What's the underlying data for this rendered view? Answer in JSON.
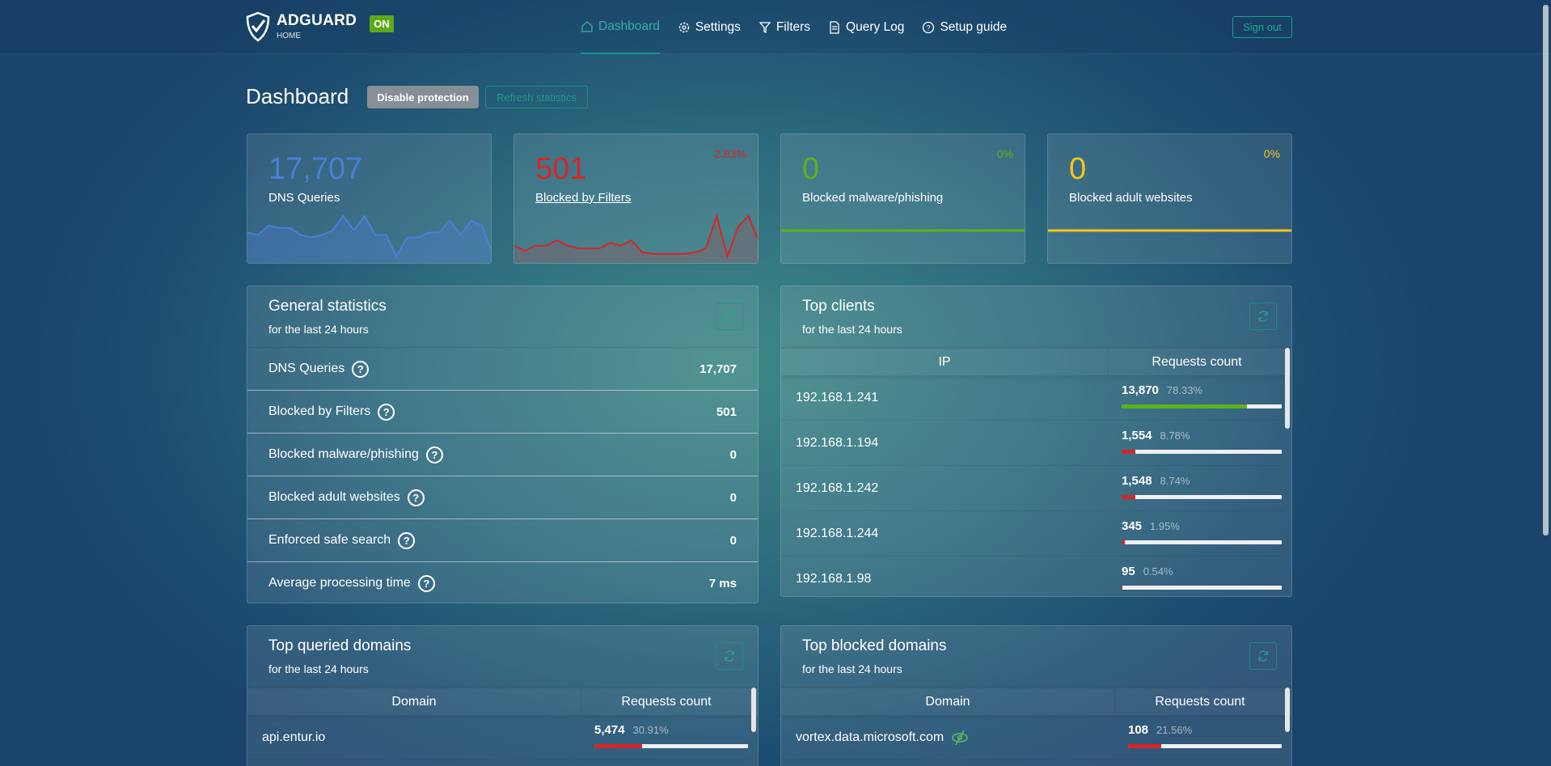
{
  "header": {
    "brand": "ADGUARD",
    "brand_sub": "HOME",
    "status_badge": "ON",
    "nav": [
      {
        "label": "Dashboard",
        "icon": "home-icon",
        "active": true
      },
      {
        "label": "Settings",
        "icon": "gear-icon"
      },
      {
        "label": "Filters",
        "icon": "filter-icon"
      },
      {
        "label": "Query Log",
        "icon": "document-icon"
      },
      {
        "label": "Setup guide",
        "icon": "help-icon"
      }
    ],
    "sign_out": "Sign out"
  },
  "page": {
    "title": "Dashboard",
    "disable_protection": "Disable protection",
    "refresh_statistics": "Refresh statistics"
  },
  "colors": {
    "blue": "#4a7fd6",
    "red": "#d52626",
    "green": "#5bb318",
    "yellow": "#f5c518",
    "accent": "#17948a"
  },
  "stat_cards": [
    {
      "value": "17,707",
      "label": "DNS Queries",
      "percent": "",
      "color": "#4a7fd6",
      "sparkline": [
        9,
        8,
        12,
        11,
        11,
        8,
        7,
        8,
        10,
        16,
        10,
        16,
        8,
        8,
        -1,
        7,
        7,
        9,
        9,
        14,
        8,
        14,
        12,
        0
      ]
    },
    {
      "value": "501",
      "label": "Blocked by Filters",
      "percent": "2.83%",
      "color": "#d52626",
      "sparkline": [
        3,
        1,
        3,
        3,
        5,
        3,
        2,
        2,
        2,
        4,
        3,
        5,
        0.5,
        0,
        0,
        0,
        0,
        0.5,
        2,
        14,
        -1,
        10,
        14,
        4
      ]
    },
    {
      "value": "0",
      "label": "Blocked malware/phishing",
      "percent": "0%",
      "color": "#5bb318",
      "sparkline": [
        0,
        0,
        0,
        0,
        0,
        0,
        0,
        0,
        0,
        0,
        0,
        0,
        0,
        0,
        0,
        0,
        0,
        0,
        0,
        0,
        0,
        0,
        0,
        0
      ]
    },
    {
      "value": "0",
      "label": "Blocked adult websites",
      "percent": "0%",
      "color": "#f5c518",
      "sparkline": [
        0,
        0,
        0,
        0,
        0,
        0,
        0,
        0,
        0,
        0,
        0,
        0,
        0,
        0,
        0,
        0,
        0,
        0,
        0,
        0,
        0,
        0,
        0,
        0
      ]
    }
  ],
  "general": {
    "title": "General statistics",
    "subtitle": "for the last 24 hours",
    "rows": [
      {
        "label": "DNS Queries",
        "value": "17,707"
      },
      {
        "label": "Blocked by Filters",
        "value": "501"
      },
      {
        "label": "Blocked malware/phishing",
        "value": "0"
      },
      {
        "label": "Blocked adult websites",
        "value": "0"
      },
      {
        "label": "Enforced safe search",
        "value": "0"
      },
      {
        "label": "Average processing time",
        "value": "7 ms"
      }
    ]
  },
  "clients": {
    "title": "Top clients",
    "subtitle": "for the last 24 hours",
    "col1": "IP",
    "col2": "Requests count",
    "rows": [
      {
        "ip": "192.168.1.241",
        "count": "13,870",
        "percent": "78.33%",
        "fill": 78.33,
        "color": "#5bb318"
      },
      {
        "ip": "192.168.1.194",
        "count": "1,554",
        "percent": "8.78%",
        "fill": 8.78,
        "color": "#d52626"
      },
      {
        "ip": "192.168.1.242",
        "count": "1,548",
        "percent": "8.74%",
        "fill": 8.74,
        "color": "#d52626"
      },
      {
        "ip": "192.168.1.244",
        "count": "345",
        "percent": "1.95%",
        "fill": 1.95,
        "color": "#d52626"
      },
      {
        "ip": "192.168.1.98",
        "count": "95",
        "percent": "0.54%",
        "fill": 0.54,
        "color": "#d52626"
      }
    ]
  },
  "queried": {
    "title": "Top queried domains",
    "subtitle": "for the last 24 hours",
    "col1": "Domain",
    "col2": "Requests count",
    "rows": [
      {
        "domain": "api.entur.io",
        "count": "5,474",
        "percent": "30.91%",
        "fill": 30.91,
        "color": "#d52626"
      }
    ]
  },
  "blocked": {
    "title": "Top blocked domains",
    "subtitle": "for the last 24 hours",
    "col1": "Domain",
    "col2": "Requests count",
    "rows": [
      {
        "domain": "vortex.data.microsoft.com",
        "count": "108",
        "percent": "21.56%",
        "fill": 21.56,
        "color": "#d52626"
      }
    ]
  }
}
